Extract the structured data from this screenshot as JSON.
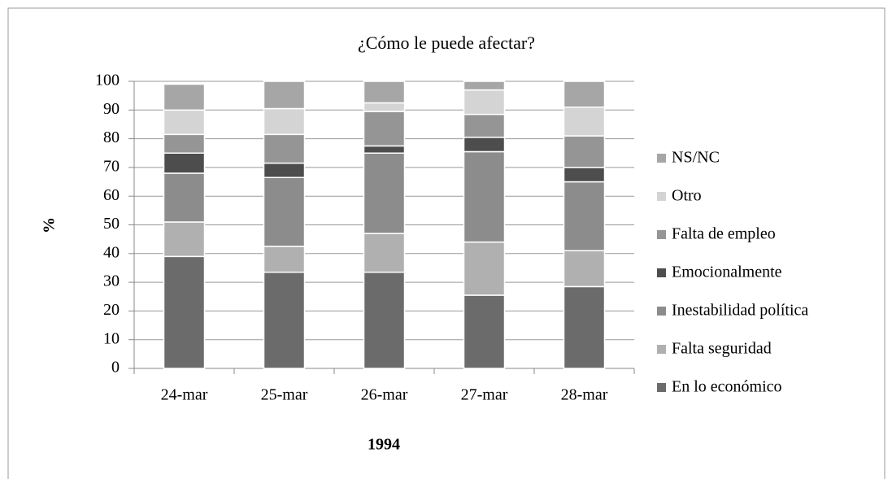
{
  "chart_data": {
    "type": "bar",
    "stacked": true,
    "title": "¿Cómo le puede afectar?",
    "ylabel": "%",
    "xlabel": "1994",
    "categories": [
      "24-mar",
      "25-mar",
      "26-mar",
      "27-mar",
      "28-mar"
    ],
    "series": [
      {
        "name": "En lo económico",
        "color": "#6b6b6b",
        "values": [
          39,
          33.5,
          33.5,
          25.5,
          28.5
        ]
      },
      {
        "name": "Falta seguridad",
        "color": "#b0b0b0",
        "values": [
          12,
          9,
          13.5,
          18.5,
          12.5
        ]
      },
      {
        "name": "Inestabilidad política",
        "color": "#8c8c8c",
        "values": [
          17,
          24,
          28,
          31.5,
          24
        ]
      },
      {
        "name": "Emocionalmente",
        "color": "#4d4d4d",
        "values": [
          7,
          5,
          2.5,
          5,
          5
        ]
      },
      {
        "name": "Falta de empleo",
        "color": "#959595",
        "values": [
          6.5,
          10,
          12,
          8,
          11
        ]
      },
      {
        "name": "Otro",
        "color": "#d4d4d4",
        "values": [
          8.5,
          9,
          3,
          8.5,
          10
        ]
      },
      {
        "name": "NS/NC",
        "color": "#a6a6a6",
        "values": [
          9,
          9.5,
          7.5,
          3,
          9
        ]
      }
    ],
    "ylim": [
      0,
      100
    ],
    "yticks": [
      0,
      10,
      20,
      30,
      40,
      50,
      60,
      70,
      80,
      90,
      100
    ],
    "grid": true,
    "legend": "right"
  }
}
